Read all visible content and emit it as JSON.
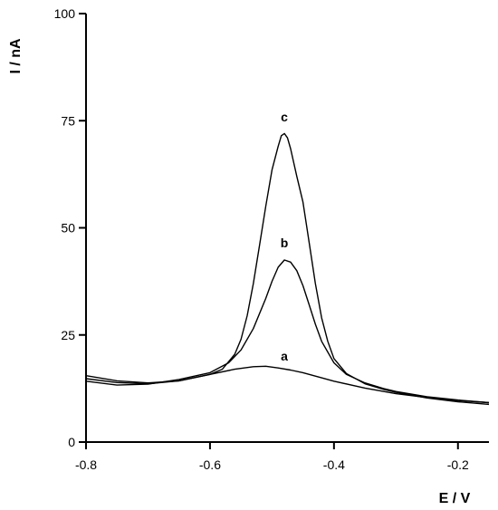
{
  "chart_data": {
    "type": "line",
    "title": "",
    "xlabel": "E / V",
    "ylabel": "I / nA",
    "xlim": [
      -0.8,
      -0.15
    ],
    "ylim": [
      0,
      100
    ],
    "xticks": [
      -0.8,
      -0.6,
      -0.4,
      -0.2
    ],
    "xtick_labels": [
      "-0.8",
      "-0.6",
      "-0.4",
      "-0.2"
    ],
    "yticks": [
      0,
      25,
      50,
      75,
      100
    ],
    "ytick_labels": [
      "0",
      "25",
      "50",
      "75",
      "100"
    ],
    "grid": false,
    "legend": "none",
    "series": [
      {
        "label": "a",
        "x": [
          -0.8,
          -0.75,
          -0.7,
          -0.65,
          -0.6,
          -0.56,
          -0.53,
          -0.51,
          -0.49,
          -0.47,
          -0.45,
          -0.42,
          -0.4,
          -0.35,
          -0.3,
          -0.25,
          -0.2,
          -0.15
        ],
        "y": [
          14.8,
          13.9,
          13.6,
          14.3,
          15.8,
          17.0,
          17.6,
          17.7,
          17.3,
          16.8,
          16.2,
          15.0,
          14.2,
          12.6,
          11.3,
          10.4,
          9.7,
          9.2
        ]
      },
      {
        "label": "b",
        "x": [
          -0.8,
          -0.75,
          -0.7,
          -0.65,
          -0.6,
          -0.57,
          -0.55,
          -0.53,
          -0.51,
          -0.5,
          -0.49,
          -0.48,
          -0.47,
          -0.46,
          -0.45,
          -0.44,
          -0.43,
          -0.42,
          -0.4,
          -0.38,
          -0.35,
          -0.32,
          -0.3,
          -0.25,
          -0.2,
          -0.15
        ],
        "y": [
          14.2,
          13.3,
          13.5,
          14.6,
          16.2,
          18.5,
          21.5,
          26.5,
          33.5,
          37.5,
          40.8,
          42.5,
          42.0,
          40.0,
          36.5,
          32.0,
          27.5,
          23.5,
          18.5,
          15.8,
          13.8,
          12.5,
          11.8,
          10.6,
          9.8,
          9.2
        ]
      },
      {
        "label": "c",
        "x": [
          -0.8,
          -0.75,
          -0.7,
          -0.65,
          -0.6,
          -0.58,
          -0.56,
          -0.55,
          -0.54,
          -0.53,
          -0.52,
          -0.51,
          -0.5,
          -0.49,
          -0.485,
          -0.48,
          -0.475,
          -0.47,
          -0.46,
          -0.45,
          -0.44,
          -0.43,
          -0.42,
          -0.41,
          -0.4,
          -0.38,
          -0.35,
          -0.32,
          -0.3,
          -0.25,
          -0.2,
          -0.15
        ],
        "y": [
          15.5,
          14.3,
          13.8,
          14.3,
          15.8,
          17.0,
          20.5,
          24.0,
          29.5,
          37.0,
          46.0,
          55.0,
          63.5,
          69.0,
          71.5,
          72.0,
          71.0,
          68.5,
          62.0,
          56.0,
          46.5,
          37.0,
          29.0,
          23.5,
          19.5,
          16.0,
          13.6,
          12.3,
          11.6,
          10.3,
          9.4,
          8.8
        ]
      }
    ],
    "annotations": [
      {
        "text": "a",
        "x": -0.48,
        "y": 19.0
      },
      {
        "text": "b",
        "x": -0.48,
        "y": 45.5
      },
      {
        "text": "c",
        "x": -0.48,
        "y": 74.8
      }
    ]
  }
}
